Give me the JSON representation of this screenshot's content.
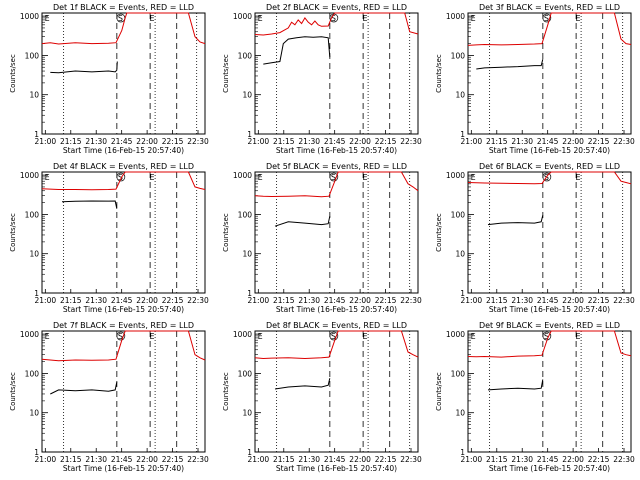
{
  "chart_data": [
    {
      "type": "line",
      "title": "Det 1f BLACK = Events, RED = LLD",
      "xlabel": "Start Time (16-Feb-15 20:57:40)",
      "ylabel": "Counts/sec",
      "xticks": [
        "21:00",
        "21:15",
        "21:30",
        "21:45",
        "22:00",
        "22:15",
        "22:30"
      ],
      "yticks": [
        "1",
        "10",
        "100",
        "1000"
      ],
      "yscale": "log",
      "ylim": [
        1,
        1200
      ],
      "xlim_min": [
        0,
        98
      ],
      "markers": [
        "E",
        "S",
        "E"
      ],
      "series": [
        {
          "color": "#000000",
          "x": [
            5,
            10,
            20,
            30,
            40,
            44,
            45,
            45.3
          ],
          "values": [
            37,
            36,
            40,
            38,
            40,
            38,
            42,
            70
          ]
        },
        {
          "color": "#dd0000",
          "x": [
            0,
            5,
            10,
            20,
            30,
            40,
            44.5,
            48,
            50,
            51,
            53,
            55,
            58,
            60,
            62,
            65,
            68,
            71,
            75,
            80,
            85,
            88,
            92,
            95,
            98
          ],
          "values": [
            200,
            210,
            195,
            210,
            200,
            205,
            210,
            430,
            900,
            1200,
            1200,
            1200,
            1200,
            1200,
            1200,
            1200,
            1200,
            1200,
            1200,
            1200,
            1200,
            1200,
            300,
            220,
            200
          ]
        }
      ],
      "vlines_dotted": [
        13,
        68,
        93
      ],
      "vlines_dashed": [
        45,
        65,
        81
      ]
    },
    {
      "type": "line",
      "title": "Det 2f BLACK = Events, RED = LLD",
      "xlabel": "Start Time (16-Feb-15 20:57:40)",
      "ylabel": "Counts/sec",
      "xticks": [
        "21:00",
        "21:15",
        "21:30",
        "21:45",
        "22:00",
        "22:15",
        "22:30"
      ],
      "yticks": [
        "1",
        "10",
        "100",
        "1000"
      ],
      "yscale": "log",
      "ylim": [
        1,
        1200
      ],
      "markers": [
        "E",
        "S",
        "E"
      ],
      "series": [
        {
          "color": "#000000",
          "x": [
            5,
            10,
            15,
            17,
            20,
            25,
            30,
            35,
            40,
            44,
            45
          ],
          "values": [
            60,
            65,
            70,
            200,
            260,
            280,
            300,
            290,
            300,
            280,
            90
          ]
        },
        {
          "color": "#dd0000",
          "x": [
            0,
            5,
            10,
            15,
            20,
            22,
            24,
            26,
            28,
            30,
            32,
            34,
            36,
            38,
            40,
            44,
            46,
            48,
            50,
            55,
            60,
            65,
            70,
            75,
            80,
            85,
            90,
            93,
            98
          ],
          "values": [
            340,
            330,
            350,
            380,
            500,
            700,
            600,
            800,
            650,
            900,
            700,
            600,
            750,
            600,
            550,
            560,
            900,
            1200,
            1200,
            1200,
            1200,
            1200,
            1200,
            1200,
            1200,
            1200,
            1200,
            400,
            350
          ]
        }
      ],
      "vlines_dotted": [
        13,
        68,
        93
      ],
      "vlines_dashed": [
        45,
        65,
        81
      ]
    },
    {
      "type": "line",
      "title": "Det 3f BLACK = Events, RED = LLD",
      "xlabel": "Start Time (16-Feb-15 20:57:40)",
      "ylabel": "Counts/sec",
      "xticks": [
        "21:00",
        "21:15",
        "21:30",
        "21:45",
        "22:00",
        "22:15",
        "22:30"
      ],
      "yticks": [
        "1",
        "10",
        "100",
        "1000"
      ],
      "yscale": "log",
      "ylim": [
        1,
        1200
      ],
      "markers": [
        "E",
        "S",
        "E"
      ],
      "series": [
        {
          "color": "#000000",
          "x": [
            5,
            10,
            20,
            30,
            40,
            44,
            45
          ],
          "values": [
            45,
            48,
            50,
            52,
            55,
            55,
            80
          ]
        },
        {
          "color": "#dd0000",
          "x": [
            0,
            5,
            10,
            20,
            30,
            40,
            44.5,
            48,
            50,
            55,
            60,
            65,
            70,
            75,
            80,
            85,
            88,
            92,
            95,
            98
          ],
          "values": [
            180,
            185,
            190,
            185,
            190,
            195,
            200,
            600,
            1200,
            1200,
            1200,
            1200,
            1200,
            1200,
            1200,
            1200,
            1200,
            260,
            200,
            190
          ]
        }
      ],
      "vlines_dotted": [
        13,
        68,
        93
      ],
      "vlines_dashed": [
        45,
        65,
        81
      ]
    },
    {
      "type": "line",
      "title": "Det 4f BLACK = Events, RED = LLD",
      "xlabel": "Start Time (16-Feb-15 20:57:40)",
      "ylabel": "Counts/sec",
      "xticks": [
        "21:00",
        "21:15",
        "21:30",
        "21:45",
        "22:00",
        "22:15",
        "22:30"
      ],
      "yticks": [
        "1",
        "10",
        "100",
        "1000"
      ],
      "yscale": "log",
      "ylim": [
        1,
        1200
      ],
      "markers": [
        "E",
        "S",
        "E"
      ],
      "series": [
        {
          "color": "#000000",
          "x": [
            12,
            20,
            30,
            40,
            44,
            45
          ],
          "values": [
            210,
            215,
            220,
            218,
            220,
            140
          ]
        },
        {
          "color": "#dd0000",
          "x": [
            0,
            5,
            10,
            20,
            30,
            40,
            44.5,
            48,
            50,
            55,
            60,
            65,
            70,
            75,
            80,
            85,
            88,
            92,
            95,
            98
          ],
          "values": [
            450,
            440,
            430,
            430,
            425,
            430,
            440,
            900,
            1200,
            1200,
            1200,
            1200,
            1200,
            1200,
            1200,
            1200,
            1200,
            500,
            460,
            430
          ]
        }
      ],
      "vlines_dotted": [
        13,
        68,
        93
      ],
      "vlines_dashed": [
        45,
        65,
        81
      ]
    },
    {
      "type": "line",
      "title": "Det 5f BLACK = Events, RED = LLD",
      "xlabel": "Start Time (16-Feb-15 20:57:40)",
      "ylabel": "Counts/sec",
      "xticks": [
        "21:00",
        "21:15",
        "21:30",
        "21:45",
        "22:00",
        "22:15",
        "22:30"
      ],
      "yticks": [
        "1",
        "10",
        "100",
        "1000"
      ],
      "yscale": "log",
      "ylim": [
        1,
        1200
      ],
      "markers": [
        "E",
        "S",
        "E"
      ],
      "series": [
        {
          "color": "#000000",
          "x": [
            12,
            20,
            30,
            40,
            44,
            45
          ],
          "values": [
            50,
            65,
            60,
            55,
            58,
            90
          ]
        },
        {
          "color": "#dd0000",
          "x": [
            0,
            5,
            10,
            20,
            30,
            40,
            44.5,
            48,
            50,
            55,
            60,
            65,
            70,
            75,
            80,
            85,
            88,
            92,
            95,
            98
          ],
          "values": [
            300,
            290,
            285,
            290,
            300,
            280,
            290,
            700,
            1200,
            1200,
            1200,
            1200,
            1200,
            1200,
            1200,
            1200,
            1200,
            600,
            500,
            400
          ]
        }
      ],
      "vlines_dotted": [
        13,
        68,
        93
      ],
      "vlines_dashed": [
        45,
        65,
        81
      ]
    },
    {
      "type": "line",
      "title": "Det 6f BLACK = Events, RED = LLD",
      "xlabel": "Start Time (16-Feb-15 20:57:40)",
      "ylabel": "Counts/sec",
      "xticks": [
        "21:00",
        "21:15",
        "21:30",
        "21:45",
        "22:00",
        "22:15",
        "22:30"
      ],
      "yticks": [
        "1",
        "10",
        "100",
        "1000"
      ],
      "yscale": "log",
      "ylim": [
        1,
        1200
      ],
      "markers": [
        "E",
        "S",
        "E"
      ],
      "series": [
        {
          "color": "#000000",
          "x": [
            12,
            20,
            30,
            40,
            44,
            45
          ],
          "values": [
            55,
            60,
            62,
            60,
            65,
            95
          ]
        },
        {
          "color": "#dd0000",
          "x": [
            0,
            5,
            10,
            20,
            30,
            40,
            44.5,
            48,
            50,
            55,
            60,
            65,
            70,
            75,
            80,
            85,
            88,
            92,
            95,
            98
          ],
          "values": [
            650,
            640,
            630,
            620,
            610,
            600,
            610,
            1000,
            1200,
            1200,
            1200,
            1200,
            1200,
            1200,
            1200,
            1200,
            1200,
            700,
            650,
            600
          ]
        }
      ],
      "vlines_dotted": [
        13,
        68,
        93
      ],
      "vlines_dashed": [
        45,
        65,
        81
      ]
    },
    {
      "type": "line",
      "title": "Det 7f BLACK = Events, RED = LLD",
      "xlabel": "Start Time (16-Feb-15 20:57:40)",
      "ylabel": "Counts/sec",
      "xticks": [
        "21:00",
        "21:15",
        "21:30",
        "21:45",
        "22:00",
        "22:15",
        "22:30"
      ],
      "yticks": [
        "1",
        "10",
        "100",
        "1000"
      ],
      "yscale": "log",
      "ylim": [
        1,
        1200
      ],
      "markers": [
        "E",
        "S",
        "E"
      ],
      "series": [
        {
          "color": "#000000",
          "x": [
            5,
            10,
            20,
            30,
            40,
            44,
            45
          ],
          "values": [
            30,
            38,
            36,
            38,
            35,
            38,
            60
          ]
        },
        {
          "color": "#dd0000",
          "x": [
            0,
            5,
            10,
            20,
            30,
            40,
            44.5,
            48,
            50,
            55,
            60,
            65,
            70,
            75,
            80,
            85,
            88,
            92,
            95,
            98
          ],
          "values": [
            230,
            220,
            210,
            220,
            215,
            220,
            230,
            700,
            1200,
            1200,
            1200,
            1200,
            1200,
            1200,
            1200,
            1200,
            1200,
            300,
            250,
            220
          ]
        }
      ],
      "vlines_dotted": [
        13,
        68,
        93
      ],
      "vlines_dashed": [
        45,
        65,
        81
      ]
    },
    {
      "type": "line",
      "title": "Det 8f BLACK = Events, RED = LLD",
      "xlabel": "Start Time (16-Feb-15 20:57:40)",
      "ylabel": "Counts/sec",
      "xticks": [
        "21:00",
        "21:15",
        "21:30",
        "21:45",
        "22:00",
        "22:15",
        "22:30"
      ],
      "yticks": [
        "1",
        "10",
        "100",
        "1000"
      ],
      "yscale": "log",
      "ylim": [
        1,
        1200
      ],
      "markers": [
        "E",
        "S",
        "E"
      ],
      "series": [
        {
          "color": "#000000",
          "x": [
            12,
            20,
            30,
            40,
            44,
            45
          ],
          "values": [
            40,
            45,
            48,
            45,
            50,
            75
          ]
        },
        {
          "color": "#dd0000",
          "x": [
            0,
            5,
            10,
            20,
            30,
            40,
            44.5,
            48,
            50,
            55,
            60,
            65,
            70,
            75,
            80,
            85,
            88,
            92,
            95,
            98
          ],
          "values": [
            250,
            240,
            245,
            250,
            240,
            250,
            260,
            700,
            1200,
            1200,
            1200,
            1200,
            1200,
            1200,
            1200,
            1200,
            1200,
            350,
            300,
            260
          ]
        }
      ],
      "vlines_dotted": [
        13,
        68,
        93
      ],
      "vlines_dashed": [
        45,
        65,
        81
      ]
    },
    {
      "type": "line",
      "title": "Det 9f BLACK = Events, RED = LLD",
      "xlabel": "Start Time (16-Feb-15 20:57:40)",
      "ylabel": "Counts/sec",
      "xticks": [
        "21:00",
        "21:15",
        "21:30",
        "21:45",
        "22:00",
        "22:15",
        "22:30"
      ],
      "yticks": [
        "1",
        "10",
        "100",
        "1000"
      ],
      "yscale": "log",
      "ylim": [
        1,
        1200
      ],
      "markers": [
        "E",
        "S",
        "E"
      ],
      "series": [
        {
          "color": "#000000",
          "x": [
            12,
            20,
            30,
            40,
            44,
            45
          ],
          "values": [
            38,
            40,
            42,
            40,
            42,
            70
          ]
        },
        {
          "color": "#dd0000",
          "x": [
            0,
            5,
            10,
            20,
            30,
            40,
            44.5,
            48,
            50,
            55,
            60,
            65,
            70,
            75,
            80,
            85,
            88,
            92,
            95,
            98
          ],
          "values": [
            270,
            265,
            270,
            260,
            275,
            280,
            290,
            800,
            1200,
            1200,
            1200,
            1200,
            1200,
            1200,
            1200,
            1200,
            1200,
            330,
            300,
            280
          ]
        }
      ],
      "vlines_dotted": [
        13,
        68,
        93
      ],
      "vlines_dashed": [
        45,
        65,
        81
      ]
    }
  ]
}
